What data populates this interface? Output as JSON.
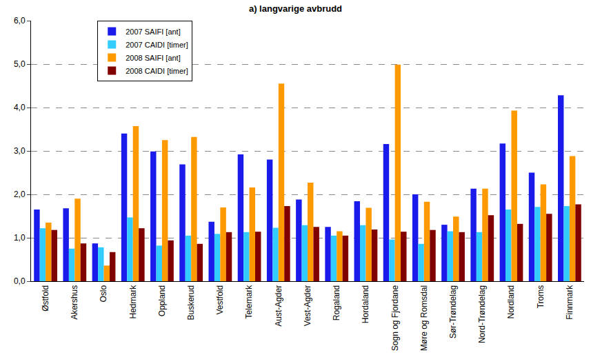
{
  "chart_data": {
    "type": "bar",
    "title": "a) langvarige avbrudd",
    "categories": [
      "Østfold",
      "Akershus",
      "Oslo",
      "Hedmark",
      "Oppland",
      "Buskerud",
      "Vestfold",
      "Telemark",
      "Aust-Agder",
      "Vest-Agder",
      "Rogaland",
      "Hordaland",
      "Sogn og Fjordane",
      "Møre og Romsdal",
      "Sør-Trøndelag",
      "Nord-Trøndelag",
      "Nordland",
      "Troms",
      "Finnmark"
    ],
    "series": [
      {
        "name": "2007 SAIFI [ant]",
        "color": "#1a1aeb",
        "values": [
          1.65,
          1.68,
          0.87,
          3.4,
          2.99,
          2.69,
          1.37,
          2.92,
          2.8,
          1.88,
          1.25,
          1.84,
          3.16,
          2.0,
          1.3,
          2.13,
          3.17,
          2.5,
          4.28
        ]
      },
      {
        "name": "2007 CAIDI [timer]",
        "color": "#33ccff",
        "values": [
          1.22,
          0.75,
          0.78,
          1.47,
          0.82,
          1.05,
          1.09,
          1.13,
          1.23,
          1.29,
          1.05,
          1.29,
          0.96,
          0.86,
          1.15,
          1.13,
          1.65,
          1.71,
          1.73
        ]
      },
      {
        "name": "2008 SAIFI [ant]",
        "color": "#ff9900",
        "values": [
          1.35,
          1.9,
          0.36,
          3.57,
          3.25,
          3.32,
          1.7,
          2.16,
          4.55,
          2.27,
          1.15,
          1.69,
          4.99,
          1.83,
          1.49,
          2.13,
          3.93,
          2.23,
          2.88
        ]
      },
      {
        "name": "2008 CAIDI [timer]",
        "color": "#800000",
        "values": [
          1.18,
          0.87,
          0.67,
          1.22,
          0.94,
          0.86,
          1.13,
          1.14,
          1.73,
          1.25,
          1.05,
          1.19,
          1.14,
          1.18,
          1.13,
          1.52,
          1.32,
          1.55,
          1.77
        ]
      }
    ],
    "ylim": [
      0,
      6
    ],
    "yticks": [
      {
        "value": 0,
        "label": "0,0"
      },
      {
        "value": 1,
        "label": "1,0"
      },
      {
        "value": 2,
        "label": "2,0"
      },
      {
        "value": 3,
        "label": "3,0"
      },
      {
        "value": 4,
        "label": "4,0"
      },
      {
        "value": 5,
        "label": "5,0"
      },
      {
        "value": 6,
        "label": "6,0"
      }
    ],
    "grid": true,
    "legend": "top-left"
  }
}
